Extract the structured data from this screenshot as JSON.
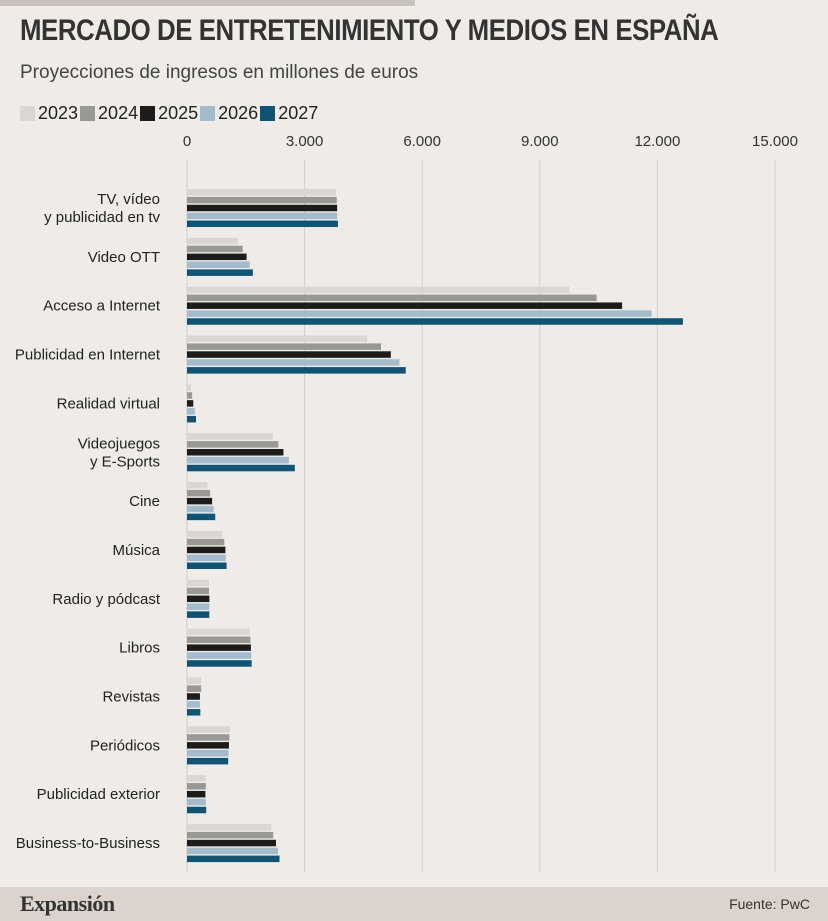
{
  "header": {
    "title": "MERCADO DE ENTRETENIMIENTO Y MEDIOS EN ESPAÑA",
    "subtitle": "Proyecciones de ingresos en millones de euros"
  },
  "footer": {
    "brand": "Expansión",
    "source": "Fuente: PwC"
  },
  "colors": {
    "2023": "#dad6d2",
    "2024": "#9a9895",
    "2025": "#1c1c1c",
    "2026": "#a3bccd",
    "2027": "#0e5474",
    "gridline": "#d3cdc6"
  },
  "chart_data": {
    "type": "bar",
    "orientation": "horizontal",
    "title": "MERCADO DE ENTRETENIMIENTO Y MEDIOS EN ESPAÑA",
    "subtitle": "Proyecciones de ingresos en millones de euros",
    "xlim": [
      0,
      15000
    ],
    "ticks": [
      {
        "value": 0,
        "label": "0"
      },
      {
        "value": 3000,
        "label": "3.000"
      },
      {
        "value": 6000,
        "label": "6.000"
      },
      {
        "value": 9000,
        "label": "9.000"
      },
      {
        "value": 12000,
        "label": "12.000"
      },
      {
        "value": 15000,
        "label": "15.000"
      }
    ],
    "grid": true,
    "legend": "top-left",
    "categories": [
      [
        "TV, vídeo",
        "y publicidad en tv"
      ],
      [
        "Video OTT"
      ],
      [
        "Acceso a Internet"
      ],
      [
        "Publicidad en Internet"
      ],
      [
        "Realidad virtual"
      ],
      [
        "Videojuegos",
        "y E-Sports"
      ],
      [
        "Cine"
      ],
      [
        "Música"
      ],
      [
        "Radio y pódcast"
      ],
      [
        "Libros"
      ],
      [
        "Revistas"
      ],
      [
        "Periódicos"
      ],
      [
        "Publicidad exterior"
      ],
      [
        "Business-to-Business"
      ]
    ],
    "series": [
      {
        "name": "2023",
        "values": [
          3800,
          1300,
          9750,
          4600,
          100,
          2200,
          520,
          900,
          560,
          1600,
          360,
          1100,
          480,
          2150
        ]
      },
      {
        "name": "2024",
        "values": [
          3820,
          1420,
          10450,
          4950,
          130,
          2330,
          590,
          950,
          560,
          1620,
          360,
          1080,
          480,
          2200
        ]
      },
      {
        "name": "2025",
        "values": [
          3830,
          1520,
          11100,
          5200,
          160,
          2460,
          640,
          980,
          570,
          1630,
          330,
          1070,
          470,
          2270
        ]
      },
      {
        "name": "2026",
        "values": [
          3830,
          1600,
          11850,
          5420,
          200,
          2600,
          680,
          990,
          570,
          1640,
          330,
          1060,
          480,
          2320
        ]
      },
      {
        "name": "2027",
        "values": [
          3850,
          1680,
          12650,
          5580,
          230,
          2750,
          720,
          1010,
          570,
          1650,
          340,
          1050,
          490,
          2360
        ]
      }
    ]
  }
}
